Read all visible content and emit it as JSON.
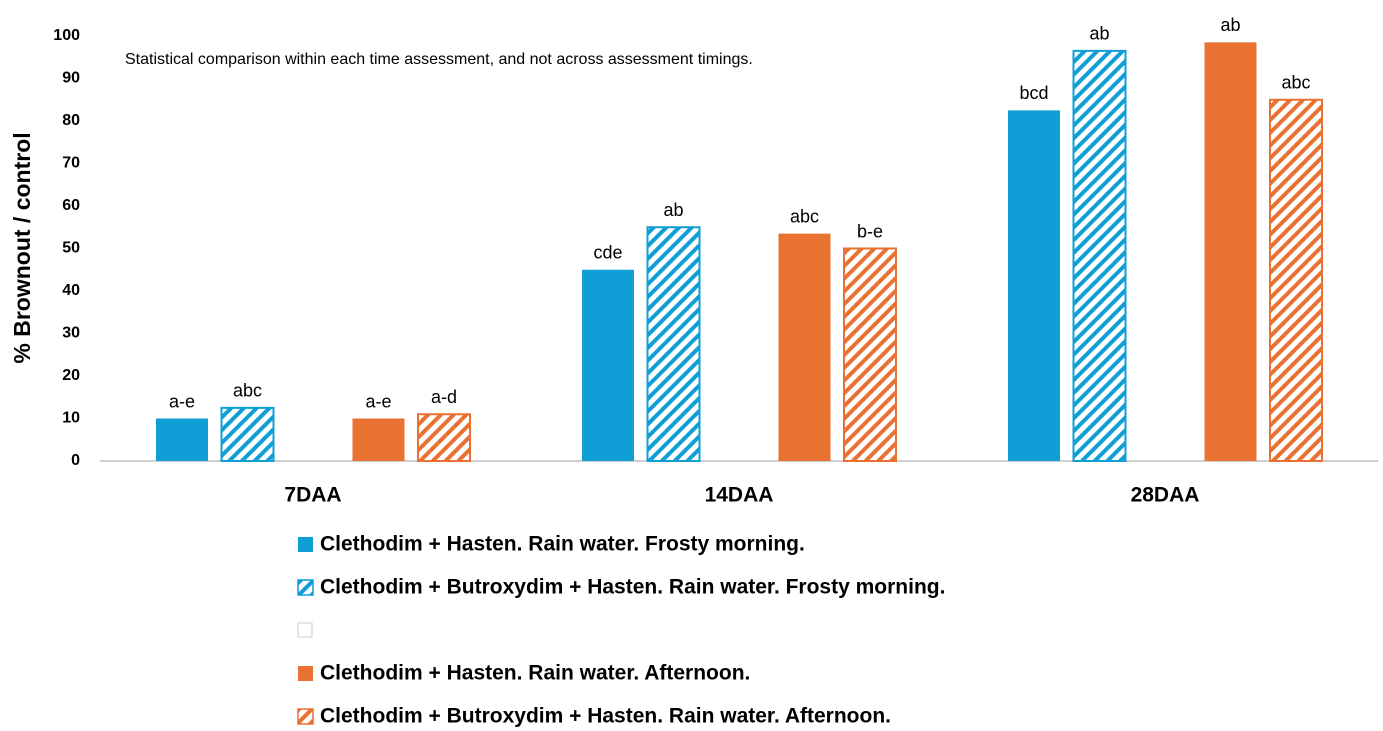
{
  "chart_data": {
    "type": "bar",
    "annotation": "Statistical comparison within each time assessment, and not across assessment timings.",
    "y_label": "% Brownout / control",
    "categories": [
      "7DAA",
      "14DAA",
      "28DAA"
    ],
    "ylim": [
      0,
      100
    ],
    "yticks": [
      0,
      10,
      20,
      30,
      40,
      50,
      60,
      70,
      80,
      90,
      100
    ],
    "grid": false,
    "series": [
      {
        "name": "Clethodim + Hasten. Rain water. Frosty morning.",
        "color": "#0f9ed5",
        "hatched": false,
        "values": [
          10,
          45,
          82.5
        ],
        "letters": [
          "a-e",
          "cde",
          "bcd"
        ]
      },
      {
        "name": "Clethodim + Butroxydim + Hasten. Rain water. Frosty morning.",
        "color": "#0f9ed5",
        "hatched": true,
        "values": [
          12.5,
          55,
          96.5
        ],
        "letters": [
          "abc",
          "ab",
          "ab"
        ]
      },
      {
        "name": "Clethodim + Hasten. Rain water. Afternoon.",
        "color": "#e97132",
        "hatched": false,
        "values": [
          10,
          53.5,
          98.5
        ],
        "letters": [
          "a-e",
          "abc",
          "ab"
        ]
      },
      {
        "name": "Clethodim + Butroxydim + Hasten. Rain water. Afternoon.",
        "color": "#e97132",
        "hatched": true,
        "values": [
          11,
          50,
          85
        ],
        "letters": [
          "a-d",
          "b-e",
          "abc"
        ]
      }
    ]
  }
}
